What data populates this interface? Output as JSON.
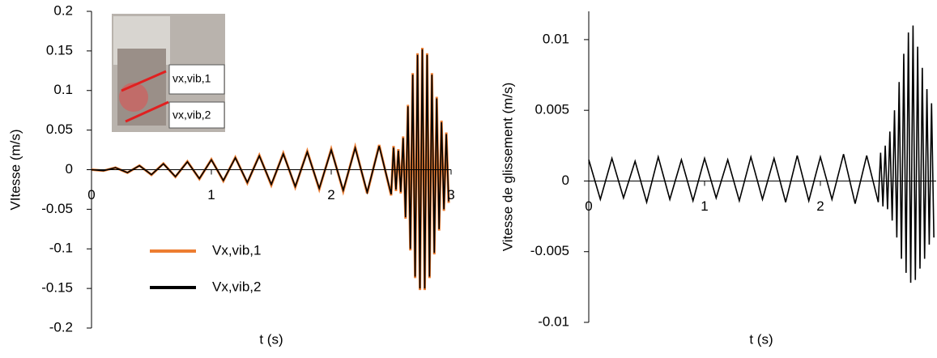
{
  "chart_data": [
    {
      "type": "line",
      "ylabel": "VItesse (m/s)",
      "xlabel": "t (s)",
      "annotations": [
        "vx,vib,1",
        "vx,vib,2"
      ],
      "x": [
        0,
        0.1,
        0.2,
        0.3,
        0.4,
        0.5,
        0.6,
        0.7,
        0.8,
        0.9,
        1,
        1.1,
        1.2,
        1.3,
        1.4,
        1.5,
        1.6,
        1.7,
        1.8,
        1.9,
        2,
        2.1,
        2.2,
        2.3,
        2.4,
        2.5,
        2.52,
        2.54,
        2.56,
        2.58,
        2.6,
        2.62,
        2.64,
        2.66,
        2.68,
        2.7,
        2.72,
        2.74,
        2.76,
        2.78,
        2.8,
        2.82,
        2.84,
        2.86,
        2.88,
        2.9,
        2.92,
        2.94,
        2.96,
        2.98
      ],
      "xlim": [
        0,
        3
      ],
      "xticks": [
        0,
        1,
        2,
        3
      ],
      "ylim": [
        -0.2,
        0.2
      ],
      "yticks": [
        -0.2,
        -0.15,
        -0.1,
        -0.05,
        0,
        0.05,
        0.1,
        0.15,
        0.2
      ],
      "series": [
        {
          "name": "Vx,vib,1",
          "color": "#ed7d31",
          "values": [
            0,
            -0.0013,
            0.0026,
            -0.0039,
            0.0052,
            -0.0065,
            0.0078,
            -0.0091,
            0.0104,
            -0.0117,
            0.013,
            -0.0143,
            0.0156,
            -0.0169,
            0.0182,
            -0.0195,
            0.0208,
            -0.0221,
            0.0234,
            -0.0247,
            0.026,
            -0.0273,
            0.0286,
            -0.0299,
            0.0312,
            -0.0325,
            0.03,
            -0.027,
            0.026,
            -0.03,
            0.042,
            -0.062,
            0.082,
            -0.102,
            0.122,
            -0.137,
            0.147,
            -0.152,
            0.154,
            -0.152,
            0.147,
            -0.137,
            0.122,
            -0.107,
            0.092,
            -0.077,
            0.062,
            -0.052,
            0.047,
            -0.042
          ]
        },
        {
          "name": "Vx,vib,2",
          "color": "#000000",
          "values": [
            0,
            -0.0012,
            0.0025,
            -0.0037,
            0.005,
            -0.0062,
            0.0074,
            -0.0087,
            0.0099,
            -0.0112,
            0.0124,
            -0.0136,
            0.0149,
            -0.0161,
            0.0174,
            -0.0186,
            0.0198,
            -0.0211,
            0.0223,
            -0.0236,
            0.0248,
            -0.026,
            0.0273,
            -0.0285,
            0.0298,
            -0.031,
            0.028,
            -0.025,
            0.024,
            -0.028,
            0.04,
            -0.06,
            0.08,
            -0.1,
            0.12,
            -0.135,
            0.145,
            -0.15,
            0.152,
            -0.15,
            0.145,
            -0.135,
            0.12,
            -0.105,
            0.09,
            -0.075,
            0.06,
            -0.05,
            0.045,
            -0.04
          ]
        }
      ]
    },
    {
      "type": "line",
      "ylabel": "Vitesse de glissement (m/s)",
      "xlabel": "t (s)",
      "x": [
        0,
        0.1,
        0.2,
        0.3,
        0.4,
        0.5,
        0.6,
        0.7,
        0.8,
        0.9,
        1,
        1.1,
        1.2,
        1.3,
        1.4,
        1.5,
        1.6,
        1.7,
        1.8,
        1.9,
        2,
        2.1,
        2.2,
        2.3,
        2.4,
        2.5,
        2.52,
        2.54,
        2.56,
        2.58,
        2.6,
        2.62,
        2.64,
        2.66,
        2.68,
        2.7,
        2.72,
        2.74,
        2.76,
        2.78,
        2.8,
        2.82,
        2.84,
        2.86,
        2.88,
        2.9,
        2.92,
        2.94,
        2.96,
        2.98
      ],
      "xlim": [
        0,
        3
      ],
      "xticks": [
        0,
        1,
        2
      ],
      "ylim": [
        -0.01,
        0.012
      ],
      "yticks": [
        -0.01,
        -0.005,
        0,
        0.005,
        0.01
      ],
      "series": [
        {
          "color": "#000000",
          "values": [
            0.0015,
            -0.0013,
            0.0016,
            -0.0012,
            0.0014,
            -0.0015,
            0.0017,
            -0.0013,
            0.0015,
            -0.0014,
            0.0016,
            -0.0012,
            0.0015,
            -0.0014,
            0.0017,
            -0.0013,
            0.0016,
            -0.0015,
            0.0018,
            -0.0014,
            0.0017,
            -0.0013,
            0.0019,
            -0.0016,
            0.0018,
            -0.0015,
            0.002,
            -0.0018,
            0.0025,
            -0.002,
            0.0035,
            -0.0028,
            0.005,
            -0.004,
            0.007,
            -0.0055,
            0.009,
            -0.0065,
            0.0105,
            -0.0072,
            0.011,
            -0.007,
            0.0095,
            -0.0062,
            0.008,
            -0.0055,
            0.0065,
            -0.0045,
            0.0055,
            -0.004
          ]
        }
      ]
    }
  ]
}
